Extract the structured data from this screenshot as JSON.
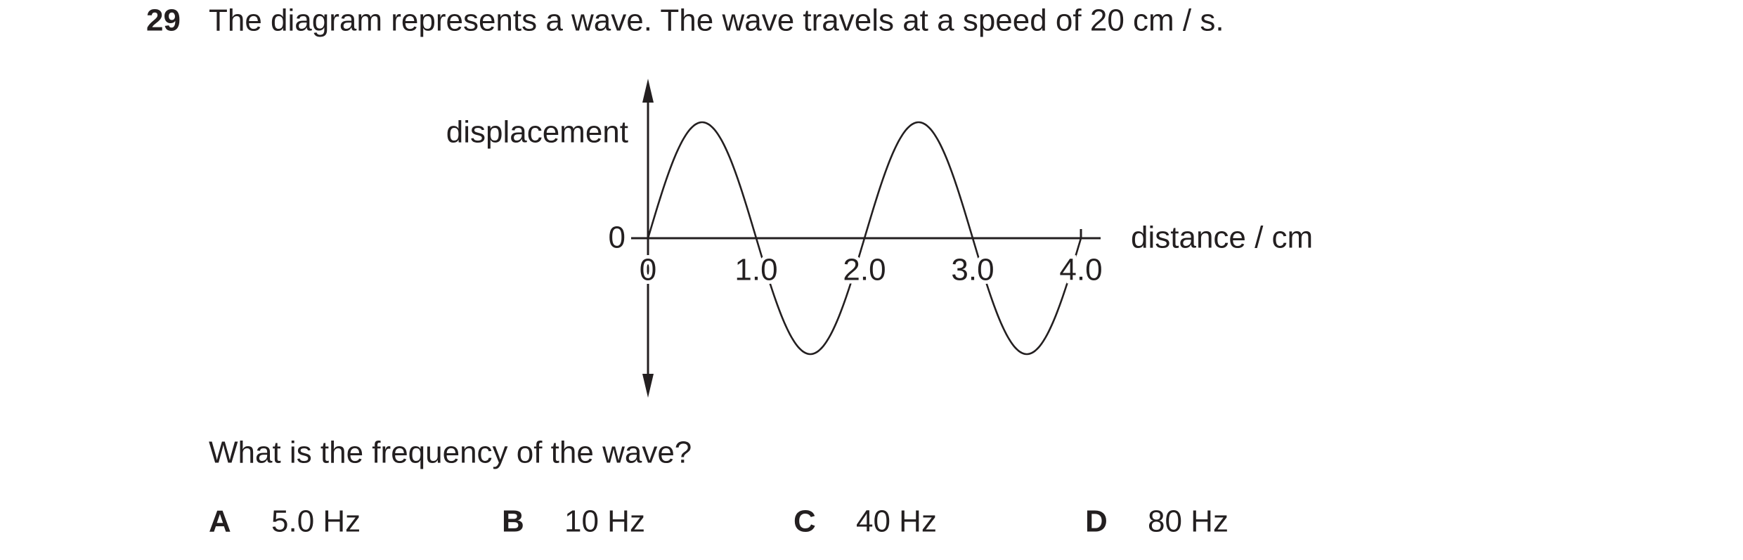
{
  "question": {
    "number": "29",
    "text": "The diagram represents a wave. The wave travels at a speed of 20 cm / s."
  },
  "diagram": {
    "y_label": "displacement",
    "x_label": "distance / cm",
    "y_zero": "0",
    "x_tick_labels": [
      "0",
      "1.0",
      "2.0",
      "3.0",
      "4.0"
    ]
  },
  "prompt": "What is the frequency of the wave?",
  "options": [
    {
      "letter": "A",
      "text": "5.0 Hz"
    },
    {
      "letter": "B",
      "text": "10 Hz"
    },
    {
      "letter": "C",
      "text": "40 Hz"
    },
    {
      "letter": "D",
      "text": "80 Hz"
    }
  ]
}
